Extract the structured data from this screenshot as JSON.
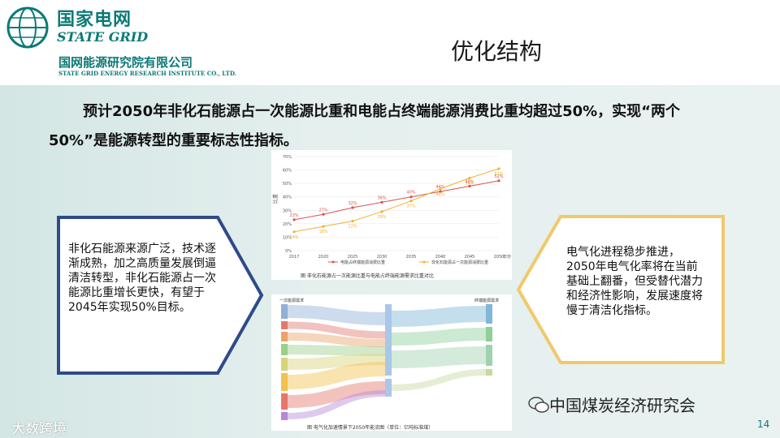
{
  "header": {
    "brand_cn": "国家电网",
    "brand_en": "STATE GRID",
    "institute_cn": "国网能源研究院有限公司",
    "institute_en": "STATE GRID ENERGY RESEARCH INSTITUTE CO., LTD."
  },
  "slide": {
    "title": "优化结构",
    "headline": "预计2050年非化石能源占一次能源比重和电能占终端能源消费比重均超过50%，实现“两个50%”是能源转型的重要标志性指标。",
    "left_text": "非化石能源来源广泛，技术逐渐成熟，加之高质量发展倒逼清洁转型，非化石能源占一次能源比重增长更快，有望于2045年实现50%目标。",
    "right_text": "电气化进程稳步推进，2050年电气化率将在当前基础上翻番，但受替代潜力和经济性影响，发展速度将慢于清洁化指标。",
    "page_number": "14",
    "wechat_label": "中国煤炭经济研究会",
    "watermark": "大数跨境"
  },
  "colors": {
    "brand": "#0a7a76",
    "left_arrow": "#2f4a8a",
    "right_arrow": "#f0c96a"
  },
  "chart_data": [
    {
      "type": "line",
      "x": [
        2017,
        2020,
        2025,
        2030,
        2035,
        2040,
        2045,
        2050
      ],
      "series": [
        {
          "name": "电能占终端能源消费比重",
          "color": "#d9534f",
          "values": [
            23,
            27,
            32,
            36,
            40,
            44,
            48,
            52
          ]
        },
        {
          "name": "非化石能源占一次能源消费比重",
          "color": "#f0b030",
          "values": [
            14,
            18,
            22,
            29,
            37,
            46,
            54,
            61
          ]
        }
      ],
      "ylabel": "比重",
      "xlabel_suffix": "年份",
      "ylim": [
        0,
        70
      ],
      "yticks": [
        "0%",
        "10%",
        "20%",
        "30%",
        "40%",
        "50%",
        "60%",
        "70%"
      ],
      "caption": "图  非化石能源占一次能源比重与电能占终端能源需求比重对比"
    },
    {
      "type": "sankey",
      "left_header": "一次能源需求",
      "right_header": "终端能源需求",
      "caption": "图  电气化加速情景下2050年能流图（单位：亿吨标准煤）"
    }
  ]
}
